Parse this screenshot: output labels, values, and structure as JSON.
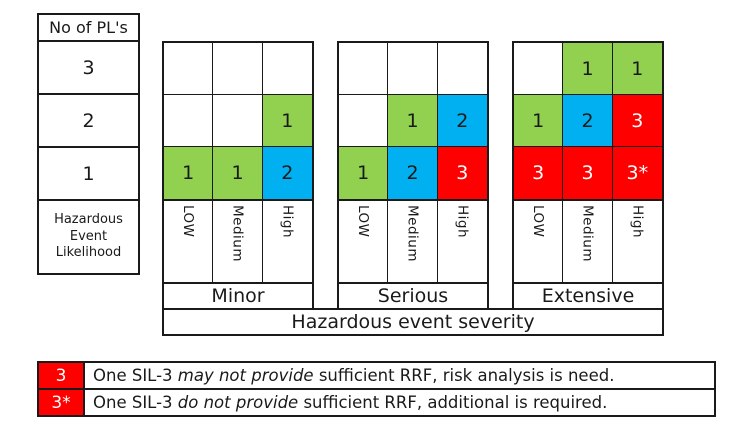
{
  "colors": {
    "green": "#92d050",
    "blue": "#00b0f0",
    "red": "#ff0000"
  },
  "pl_table": {
    "header": "No of PL's",
    "rows": [
      "3",
      "2",
      "1"
    ],
    "footer": "Hazardous Event Likelihood"
  },
  "likelihood_labels": [
    "LOW",
    "Medium",
    "High"
  ],
  "matrices": [
    {
      "name": "Minor",
      "cells": [
        [
          null,
          null,
          null
        ],
        [
          null,
          null,
          {
            "v": "1",
            "c": "green"
          }
        ],
        [
          {
            "v": "1",
            "c": "green"
          },
          {
            "v": "1",
            "c": "green"
          },
          {
            "v": "2",
            "c": "blue"
          }
        ]
      ]
    },
    {
      "name": "Serious",
      "cells": [
        [
          null,
          null,
          null
        ],
        [
          null,
          {
            "v": "1",
            "c": "green"
          },
          {
            "v": "2",
            "c": "blue"
          }
        ],
        [
          {
            "v": "1",
            "c": "green"
          },
          {
            "v": "2",
            "c": "blue"
          },
          {
            "v": "3",
            "c": "red"
          }
        ]
      ]
    },
    {
      "name": "Extensive",
      "cells": [
        [
          null,
          {
            "v": "1",
            "c": "green"
          },
          {
            "v": "1",
            "c": "green"
          }
        ],
        [
          {
            "v": "1",
            "c": "green"
          },
          {
            "v": "2",
            "c": "blue"
          },
          {
            "v": "3",
            "c": "red"
          }
        ],
        [
          {
            "v": "3",
            "c": "red"
          },
          {
            "v": "3",
            "c": "red"
          },
          {
            "v": "3*",
            "c": "red"
          }
        ]
      ]
    }
  ],
  "severity_label": "Hazardous event severity",
  "legend": [
    {
      "key": "3",
      "text_before": "One SIL-3 ",
      "italic": "may not provide",
      "text_after": " sufficient RRF, risk analysis is need."
    },
    {
      "key": "3*",
      "text_before": "One SIL-3 ",
      "italic": "do not provide",
      "text_after": " sufficient RRF, additional is required."
    }
  ]
}
